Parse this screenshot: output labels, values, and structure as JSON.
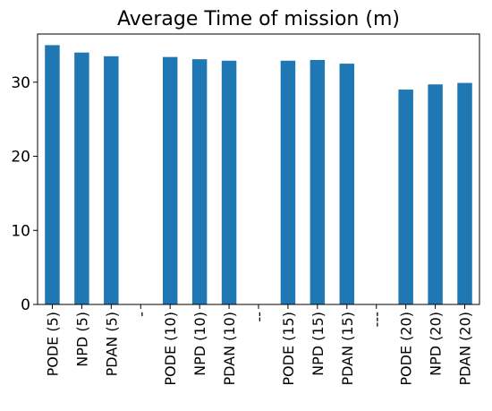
{
  "chart_data": {
    "type": "bar",
    "title": "Average Time of mission (m)",
    "xlabel": "",
    "ylabel": "",
    "categories": [
      "PODE (5)",
      "NPD (5)",
      "PDAN (5)",
      "-",
      "PODE (10)",
      "NPD (10)",
      "PDAN (10)",
      "--",
      "PODE (15)",
      "NPD (15)",
      "PDAN (15)",
      "---",
      "PODE (20)",
      "NPD (20)",
      "PDAN (20)"
    ],
    "values": [
      35.0,
      34.0,
      33.5,
      0,
      33.4,
      33.1,
      32.9,
      0,
      32.9,
      33.0,
      32.5,
      0,
      29.0,
      29.7,
      29.9
    ],
    "ylim": [
      0,
      36.5
    ],
    "yticks": [
      0,
      10,
      20,
      30
    ],
    "grid": false,
    "colors": {
      "bar": "#1f77b4",
      "axis": "#000000"
    }
  }
}
